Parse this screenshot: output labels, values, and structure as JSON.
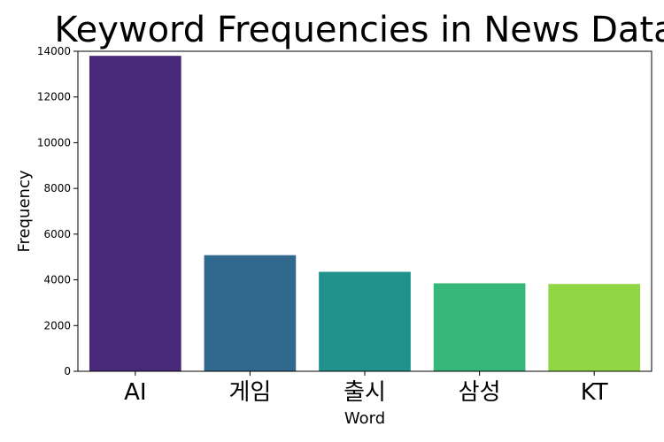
{
  "chart_data": {
    "type": "bar",
    "title": "Keyword Frequencies in News Data",
    "xlabel": "Word",
    "ylabel": "Frequency",
    "categories": [
      "AI",
      "게임",
      "출시",
      "삼성",
      "KT"
    ],
    "values": [
      13800,
      5080,
      4350,
      3850,
      3820
    ],
    "colors": [
      "#482878",
      "#31688e",
      "#21918c",
      "#35b779",
      "#90d743"
    ],
    "ylim": [
      0,
      14000
    ],
    "yticks": [
      0,
      2000,
      4000,
      6000,
      8000,
      10000,
      12000,
      14000
    ],
    "grid": false,
    "legend": "none"
  }
}
